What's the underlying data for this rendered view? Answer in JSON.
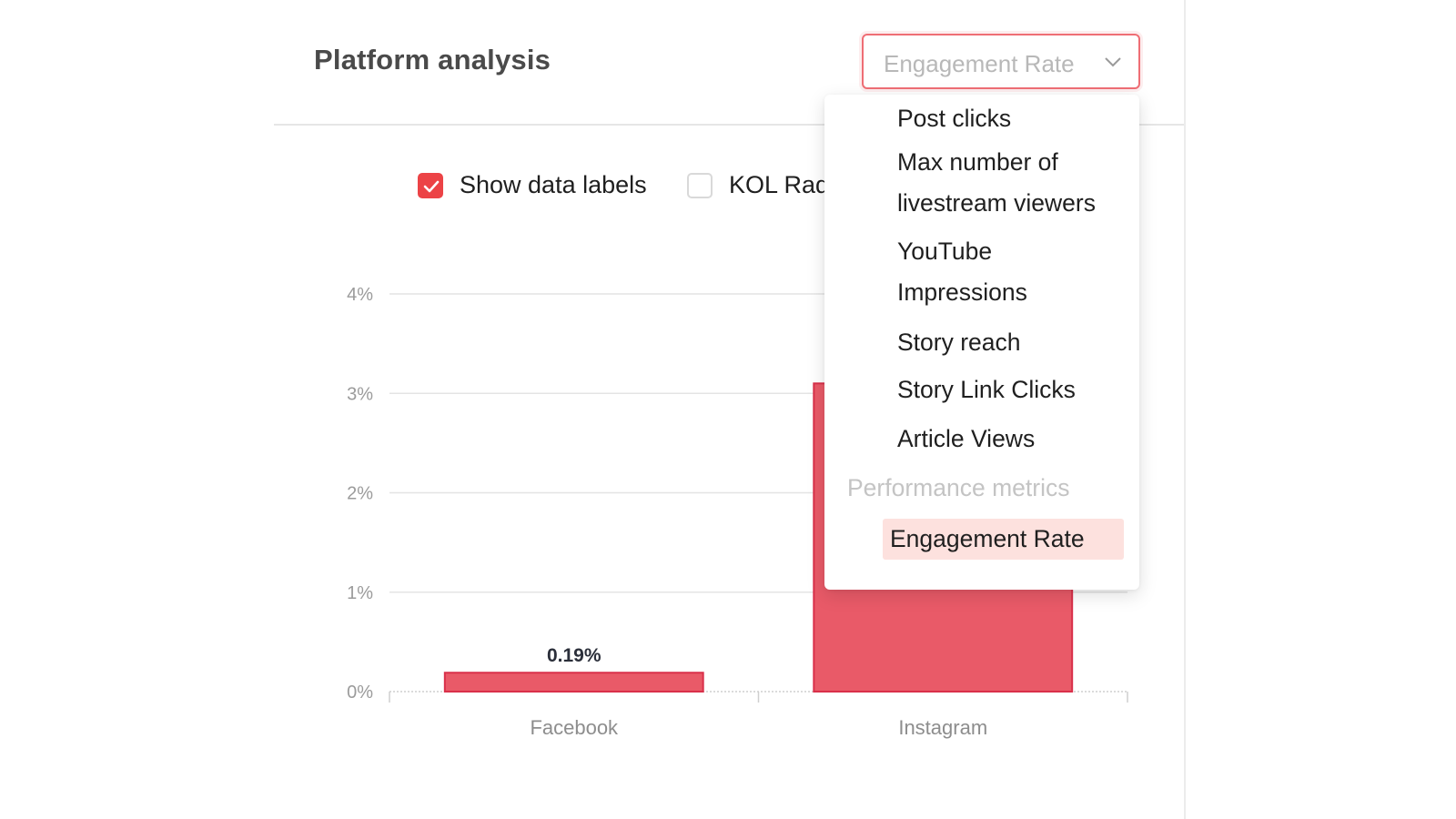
{
  "panel": {
    "title": "Platform analysis"
  },
  "metric_select": {
    "value": "Engagement Rate",
    "icon": "chevron-down-icon"
  },
  "options": {
    "show_data_labels": {
      "label": "Show data labels",
      "checked": true
    },
    "kol_radius": {
      "label": "KOL Rad",
      "checked": false
    }
  },
  "dropdown": {
    "items": [
      {
        "label": "Post clicks"
      },
      {
        "label": "Max number of livestream viewers"
      },
      {
        "label": "YouTube Impressions"
      },
      {
        "label": "Story reach"
      },
      {
        "label": "Story Link Clicks"
      },
      {
        "label": "Article Views"
      }
    ],
    "group": "Performance metrics",
    "group_items": [
      {
        "label": "Engagement Rate",
        "selected": true
      }
    ]
  },
  "colors": {
    "accent": "#ec4346",
    "bar_fill": "#e95a68",
    "bar_stroke": "#d9304a",
    "select_hover": "#fde1de"
  },
  "chart_data": {
    "type": "bar",
    "categories": [
      "Facebook",
      "Instagram"
    ],
    "values": [
      0.19,
      3.1
    ],
    "data_labels": [
      "0.19%",
      ""
    ],
    "ylim": [
      0,
      4
    ],
    "yticks": [
      "0%",
      "1%",
      "2%",
      "3%",
      "4%"
    ],
    "grid": true,
    "xlabel": "",
    "ylabel": ""
  }
}
